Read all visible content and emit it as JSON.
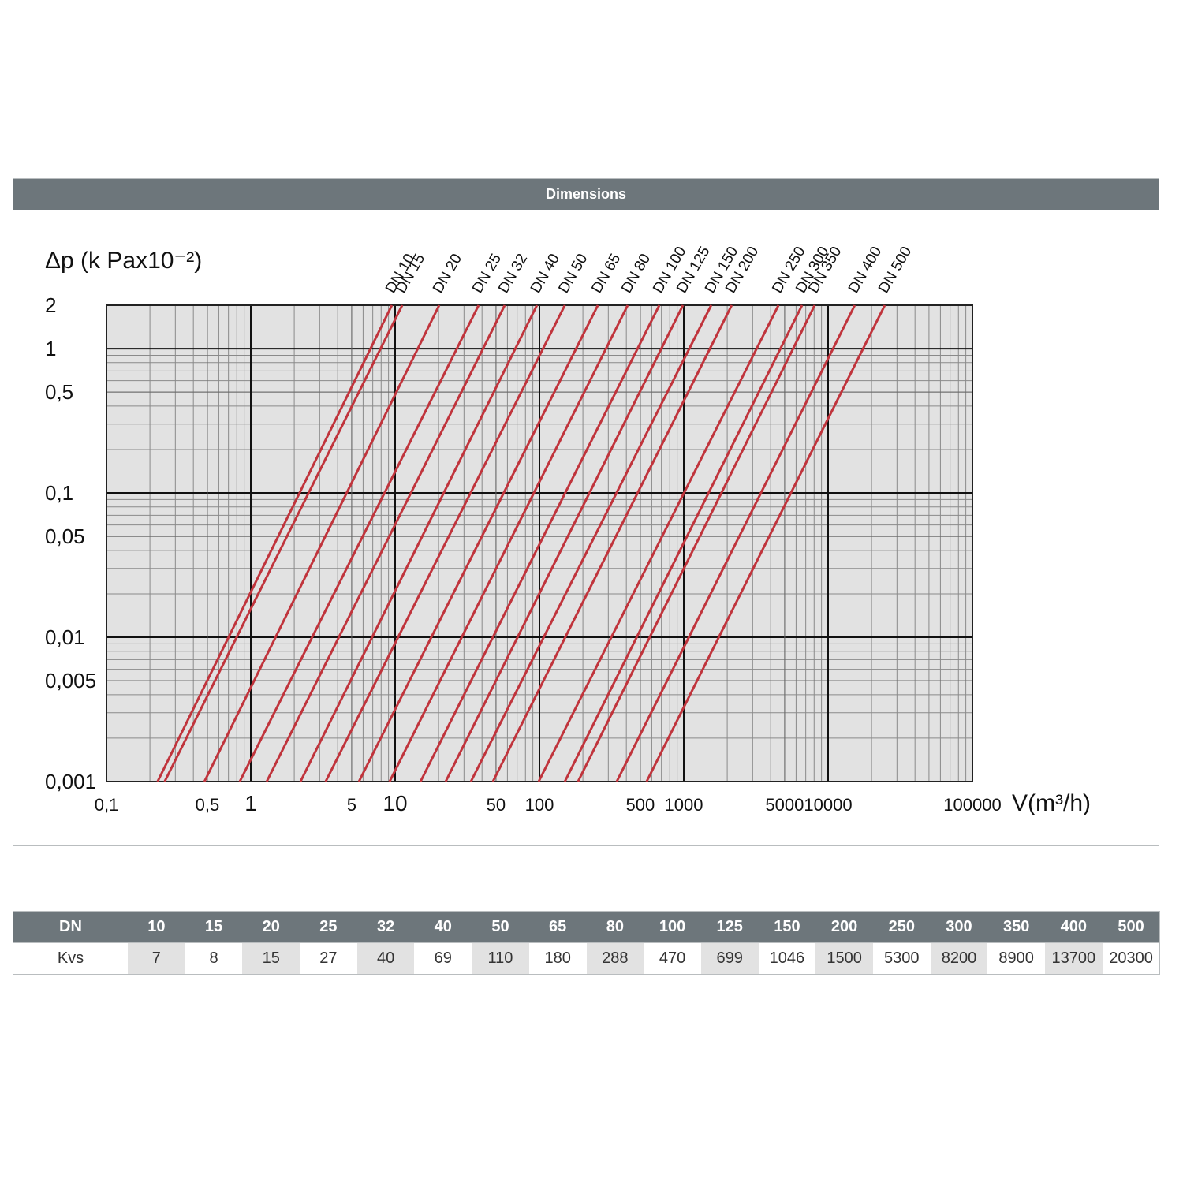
{
  "panel_title": "Dimensions",
  "chart_data": {
    "type": "line",
    "ylabel": "Δp (k Pax10⁻²)",
    "xlabel": "V(m³/h)",
    "xscale": "log",
    "yscale": "log",
    "xlim": [
      0.1,
      100000
    ],
    "ylim": [
      0.001,
      2
    ],
    "xticks": [
      {
        "value": 0.1,
        "label": "0,1"
      },
      {
        "value": 0.5,
        "label": "0,5"
      },
      1,
      5,
      10,
      50,
      100,
      500,
      1000,
      5000,
      10000,
      100000
    ],
    "yticks": [
      2,
      1,
      {
        "value": 0.5,
        "label": "0,5"
      },
      {
        "value": 0.1,
        "label": "0,1"
      },
      {
        "value": 0.05,
        "label": "0,05"
      },
      {
        "value": 0.01,
        "label": "0,01"
      },
      {
        "value": 0.005,
        "label": "0,005"
      },
      {
        "value": 0.001,
        "label": "0,001"
      }
    ],
    "grid": true,
    "minor_grid": true,
    "series": [
      {
        "name": "DN 10",
        "color": "#c0343c",
        "x": [
          0.226,
          9.5
        ],
        "values": [
          0.001,
          2
        ]
      },
      {
        "name": "DN 15",
        "color": "#c0343c",
        "x": [
          0.253,
          11.2
        ],
        "values": [
          0.001,
          2
        ]
      },
      {
        "name": "DN 20",
        "color": "#c0343c",
        "x": [
          0.477,
          20.2
        ],
        "values": [
          0.001,
          2
        ]
      },
      {
        "name": "DN 25",
        "color": "#c0343c",
        "x": [
          0.838,
          37.9
        ],
        "values": [
          0.001,
          2
        ]
      },
      {
        "name": "DN 32",
        "color": "#c0343c",
        "x": [
          1.29,
          57.5
        ],
        "values": [
          0.001,
          2
        ]
      },
      {
        "name": "DN 40",
        "color": "#c0343c",
        "x": [
          2.21,
          96
        ],
        "values": [
          0.001,
          2
        ]
      },
      {
        "name": "DN 50",
        "color": "#c0343c",
        "x": [
          3.3,
          150
        ],
        "values": [
          0.001,
          2
        ]
      },
      {
        "name": "DN 65",
        "color": "#c0343c",
        "x": [
          5.61,
          254
        ],
        "values": [
          0.001,
          2
        ]
      },
      {
        "name": "DN 80",
        "color": "#c0343c",
        "x": [
          9.16,
          409
        ],
        "values": [
          0.001,
          2
        ]
      },
      {
        "name": "DN 100",
        "color": "#c0343c",
        "x": [
          15,
          677
        ],
        "values": [
          0.001,
          2
        ]
      },
      {
        "name": "DN 125",
        "color": "#c0343c",
        "x": [
          22.4,
          988
        ],
        "values": [
          0.001,
          2
        ]
      },
      {
        "name": "DN 150",
        "color": "#c0343c",
        "x": [
          33.5,
          1550
        ],
        "values": [
          0.001,
          2
        ]
      },
      {
        "name": "DN 200",
        "color": "#c0343c",
        "x": [
          47.6,
          2150
        ],
        "values": [
          0.001,
          2
        ]
      },
      {
        "name": "DN 250",
        "color": "#c0343c",
        "x": [
          98.8,
          4530
        ],
        "values": [
          0.001,
          2
        ]
      },
      {
        "name": "DN 300",
        "color": "#c0343c",
        "x": [
          150,
          6600
        ],
        "values": [
          0.001,
          2
        ]
      },
      {
        "name": "DN 350",
        "color": "#c0343c",
        "x": [
          185,
          8070
        ],
        "values": [
          0.001,
          2
        ]
      },
      {
        "name": "DN 400",
        "color": "#c0343c",
        "x": [
          343,
          15300
        ],
        "values": [
          0.001,
          2
        ]
      },
      {
        "name": "DN 500",
        "color": "#c0343c",
        "x": [
          553,
          24700
        ],
        "values": [
          0.001,
          2
        ]
      }
    ]
  },
  "table": {
    "header": [
      "DN",
      10,
      15,
      20,
      25,
      32,
      40,
      50,
      65,
      80,
      100,
      125,
      150,
      200,
      250,
      300,
      350,
      400,
      500
    ],
    "rows": [
      [
        "Kvs",
        7,
        8,
        15,
        27,
        40,
        69,
        110,
        180,
        288,
        470,
        699,
        1046,
        1500,
        5300,
        8200,
        8900,
        13700,
        20300
      ]
    ]
  }
}
